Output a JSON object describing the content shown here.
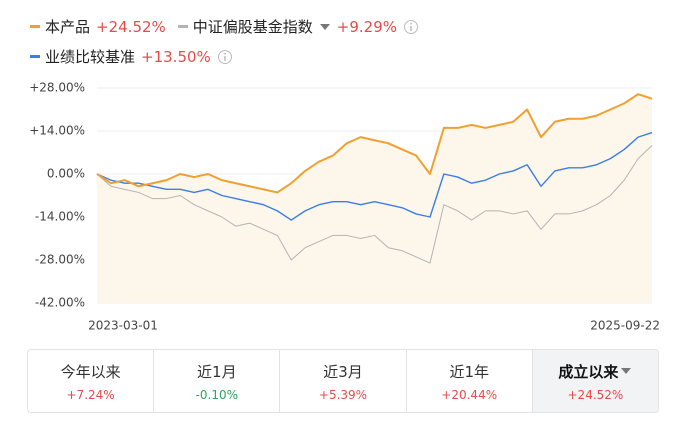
{
  "chart_data": {
    "type": "line",
    "categories": [
      "2023-03-01",
      null,
      null,
      null,
      null,
      null,
      null,
      null,
      null,
      null,
      null,
      null,
      null,
      null,
      null,
      null,
      null,
      null,
      null,
      null,
      null,
      null,
      null,
      null,
      null,
      null,
      null,
      null,
      null,
      null,
      null,
      null,
      null,
      null,
      null,
      null,
      null,
      null,
      null,
      null,
      "2025-09-22"
    ],
    "series": [
      {
        "name": "本产品",
        "color": "#f0a030",
        "return_label": "+24.52%",
        "values": [
          0,
          -3,
          -2,
          -4,
          -3,
          -2,
          0,
          -1,
          0,
          -2,
          -3,
          -4,
          -5,
          -6,
          -3,
          1,
          4,
          6,
          10,
          12,
          11,
          10,
          8,
          6,
          0,
          15,
          15,
          16,
          15,
          16,
          17,
          21,
          12,
          17,
          18,
          18,
          19,
          21,
          23,
          26,
          24.52
        ]
      },
      {
        "name": "中证偏股基金指数",
        "color": "#b4b4b4",
        "return_label": "+9.29%",
        "values": [
          0,
          -4,
          -5,
          -6,
          -8,
          -8,
          -7,
          -10,
          -12,
          -14,
          -17,
          -16,
          -18,
          -20,
          -28,
          -24,
          -22,
          -20,
          -20,
          -21,
          -20,
          -24,
          -25,
          -27,
          -29,
          -10,
          -12,
          -15,
          -12,
          -12,
          -13,
          -12,
          -18,
          -13,
          -13,
          -12,
          -10,
          -7,
          -2,
          5,
          9.29
        ]
      },
      {
        "name": "业绩比较基准",
        "color": "#3b7de9",
        "return_label": "+13.50%",
        "values": [
          0,
          -2,
          -3,
          -3,
          -4,
          -5,
          -5,
          -6,
          -5,
          -7,
          -8,
          -9,
          -10,
          -12,
          -15,
          -12,
          -10,
          -9,
          -9,
          -10,
          -9,
          -10,
          -11,
          -13,
          -14,
          0,
          -1,
          -3,
          -2,
          0,
          1,
          3,
          -4,
          1,
          2,
          2,
          3,
          5,
          8,
          12,
          13.5
        ]
      }
    ],
    "ylim": [
      -42,
      28
    ],
    "yticks": [
      {
        "value": 28,
        "label": "+28.00%"
      },
      {
        "value": 14,
        "label": "+14.00%"
      },
      {
        "value": 0,
        "label": "0.00%"
      },
      {
        "value": -14,
        "label": "-14.00%"
      },
      {
        "value": -28,
        "label": "-28.00%"
      },
      {
        "value": -42,
        "label": "-42.00%"
      }
    ],
    "grid": true,
    "area_color": "#fdf6ea"
  },
  "period_tabs": [
    {
      "label": "今年以来",
      "return": "+7.24%"
    },
    {
      "label": "近1月",
      "return": "-0.10%"
    },
    {
      "label": "近3月",
      "return": "+5.39%"
    },
    {
      "label": "近1年",
      "return": "+20.44%"
    },
    {
      "label": "成立以来",
      "return": "+24.52%"
    }
  ]
}
